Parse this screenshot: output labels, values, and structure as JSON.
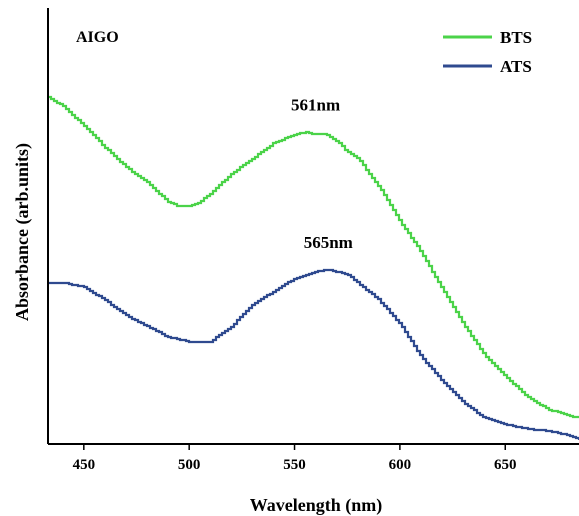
{
  "chart_data": {
    "type": "line",
    "title": "",
    "panel_label": "AIGO",
    "xlabel": "Wavelength (nm)",
    "ylabel": "Absorbance (arb.units)",
    "xlim": [
      433,
      685
    ],
    "ylim": [
      0,
      1
    ],
    "x_ticks": [
      450,
      500,
      550,
      600,
      650
    ],
    "y_ticks_shown": false,
    "grid": false,
    "legend_position": "top-right",
    "colors": {
      "BTS": "#4bd349",
      "ATS": "#2f4a8f"
    },
    "series": [
      {
        "name": "BTS",
        "x": [
          433,
          440,
          450,
          460,
          470,
          480,
          490,
          495,
          500,
          505,
          510,
          520,
          530,
          540,
          550,
          555,
          560,
          565,
          570,
          575,
          580,
          590,
          600,
          610,
          620,
          630,
          640,
          650,
          660,
          670,
          680,
          685
        ],
        "y": [
          0.795,
          0.775,
          0.73,
          0.68,
          0.635,
          0.6,
          0.555,
          0.545,
          0.545,
          0.555,
          0.575,
          0.62,
          0.655,
          0.69,
          0.71,
          0.715,
          0.71,
          0.71,
          0.695,
          0.67,
          0.655,
          0.59,
          0.51,
          0.44,
          0.355,
          0.275,
          0.205,
          0.155,
          0.11,
          0.08,
          0.065,
          0.06
        ]
      },
      {
        "name": "ATS",
        "x": [
          433,
          440,
          450,
          460,
          470,
          480,
          490,
          495,
          500,
          505,
          510,
          520,
          530,
          540,
          550,
          560,
          565,
          570,
          575,
          580,
          590,
          600,
          610,
          620,
          630,
          640,
          650,
          660,
          670,
          680,
          685
        ],
        "y": [
          0.37,
          0.37,
          0.36,
          0.33,
          0.295,
          0.27,
          0.245,
          0.24,
          0.235,
          0.235,
          0.235,
          0.27,
          0.32,
          0.35,
          0.38,
          0.395,
          0.4,
          0.395,
          0.39,
          0.37,
          0.33,
          0.275,
          0.2,
          0.145,
          0.095,
          0.06,
          0.045,
          0.035,
          0.03,
          0.02,
          0.01
        ]
      }
    ],
    "annotations": [
      {
        "text": "561nm",
        "x": 560,
        "y": 0.765
      },
      {
        "text": "565nm",
        "x": 566,
        "y": 0.45
      }
    ]
  }
}
